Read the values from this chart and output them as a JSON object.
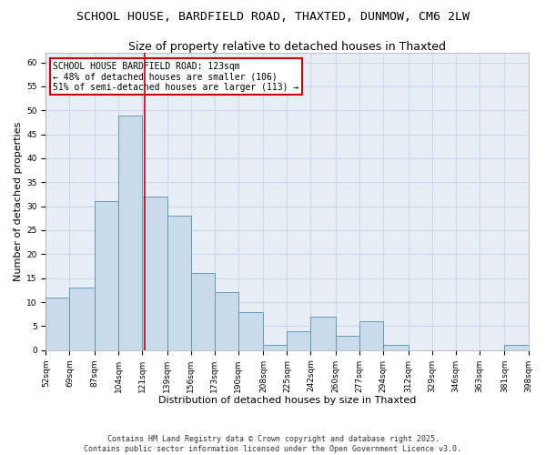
{
  "title1": "SCHOOL HOUSE, BARDFIELD ROAD, THAXTED, DUNMOW, CM6 2LW",
  "title2": "Size of property relative to detached houses in Thaxted",
  "xlabel": "Distribution of detached houses by size in Thaxted",
  "ylabel": "Number of detached properties",
  "footnote": "Contains HM Land Registry data © Crown copyright and database right 2025.\nContains public sector information licensed under the Open Government Licence v3.0.",
  "bar_edges": [
    52,
    69,
    87,
    104,
    121,
    139,
    156,
    173,
    190,
    208,
    225,
    242,
    260,
    277,
    294,
    312,
    329,
    346,
    363,
    381,
    398
  ],
  "bar_heights": [
    11,
    13,
    31,
    49,
    32,
    28,
    16,
    12,
    8,
    1,
    4,
    7,
    3,
    6,
    1,
    0,
    0,
    0,
    0,
    1
  ],
  "bar_color": "#c9daea",
  "bar_edge_color": "#6699bb",
  "grid_color": "#cdd8e8",
  "background_color": "#e8eef6",
  "annotation_text": "SCHOOL HOUSE BARDFIELD ROAD: 123sqm\n← 48% of detached houses are smaller (106)\n51% of semi-detached houses are larger (113) →",
  "annotation_box_color": "#ffffff",
  "annotation_box_edge_color": "#cc0000",
  "vline_x": 123,
  "vline_color": "#cc0000",
  "ylim": [
    0,
    62
  ],
  "yticks": [
    0,
    5,
    10,
    15,
    20,
    25,
    30,
    35,
    40,
    45,
    50,
    55,
    60
  ],
  "title1_fontsize": 9.5,
  "title2_fontsize": 9,
  "label_fontsize": 8,
  "tick_fontsize": 6.5,
  "footnote_fontsize": 6.0,
  "annotation_fontsize": 7.0
}
